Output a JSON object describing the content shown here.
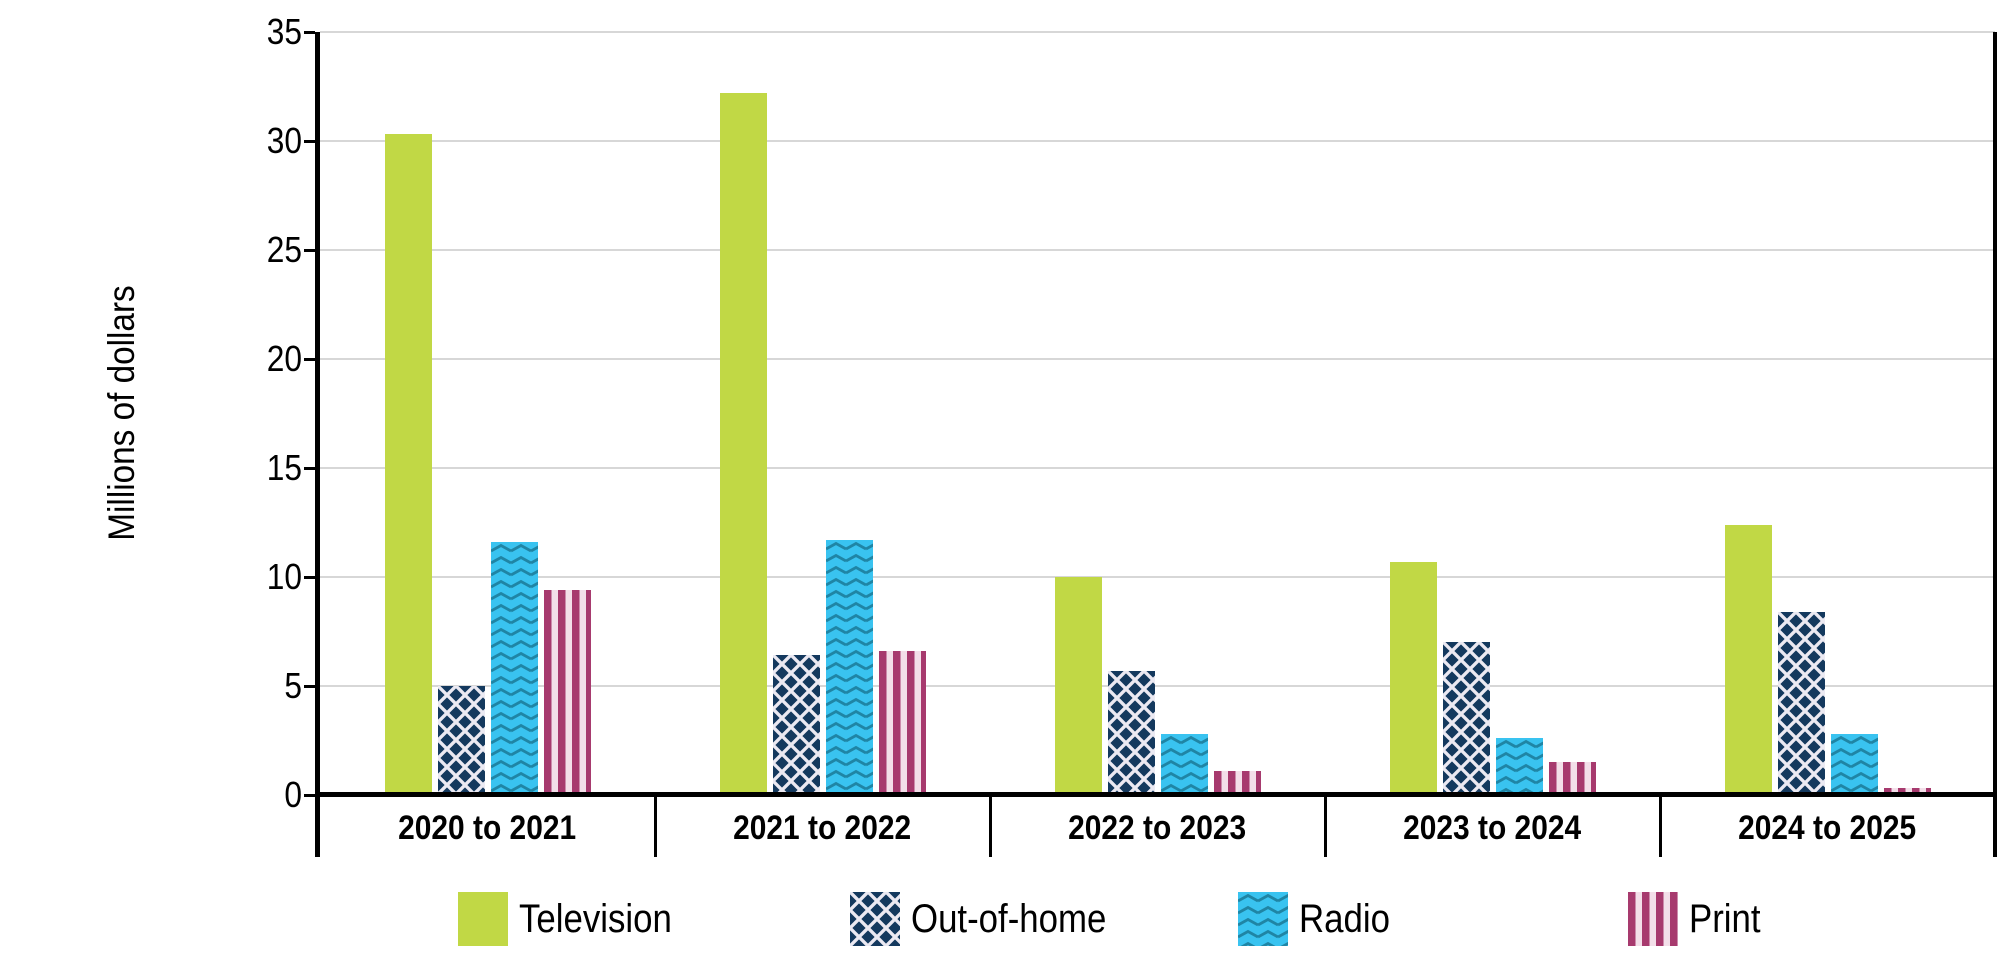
{
  "chart_data": {
    "type": "bar",
    "title": "",
    "ylabel": "Millions of dollars",
    "xlabel": "",
    "ylim": [
      0,
      35
    ],
    "yticks": [
      0,
      5,
      10,
      15,
      20,
      25,
      30,
      35
    ],
    "grid": true,
    "legend_position": "bottom",
    "categories": [
      "2020 to 2021",
      "2021 to 2022",
      "2022 to 2023",
      "2023 to 2024",
      "2024 to 2025"
    ],
    "series": [
      {
        "name": "Television",
        "pattern": "solid",
        "color": "#c1d845",
        "pattern_color": "",
        "values": [
          30.3,
          32.2,
          10.0,
          10.7,
          12.4
        ]
      },
      {
        "name": "Out-of-home",
        "pattern": "diamond-lattice",
        "color": "#14395e",
        "pattern_color": "#ebe9f2",
        "values": [
          5.0,
          6.4,
          5.7,
          7.0,
          8.4
        ]
      },
      {
        "name": "Radio",
        "pattern": "zigzag",
        "color": "#39c3f0",
        "pattern_color": "#1f85a5",
        "values": [
          11.6,
          11.7,
          2.8,
          2.6,
          2.8
        ]
      },
      {
        "name": "Print",
        "pattern": "vertical-stripes",
        "color": "#a73a6e",
        "pattern_color": "#f3dfe9",
        "values": [
          9.4,
          6.6,
          1.1,
          1.5,
          0.3
        ]
      }
    ],
    "colors": {
      "gridline": "#d7d7d7",
      "axis": "#000000",
      "text": "#000000",
      "background": "#ffffff"
    }
  }
}
